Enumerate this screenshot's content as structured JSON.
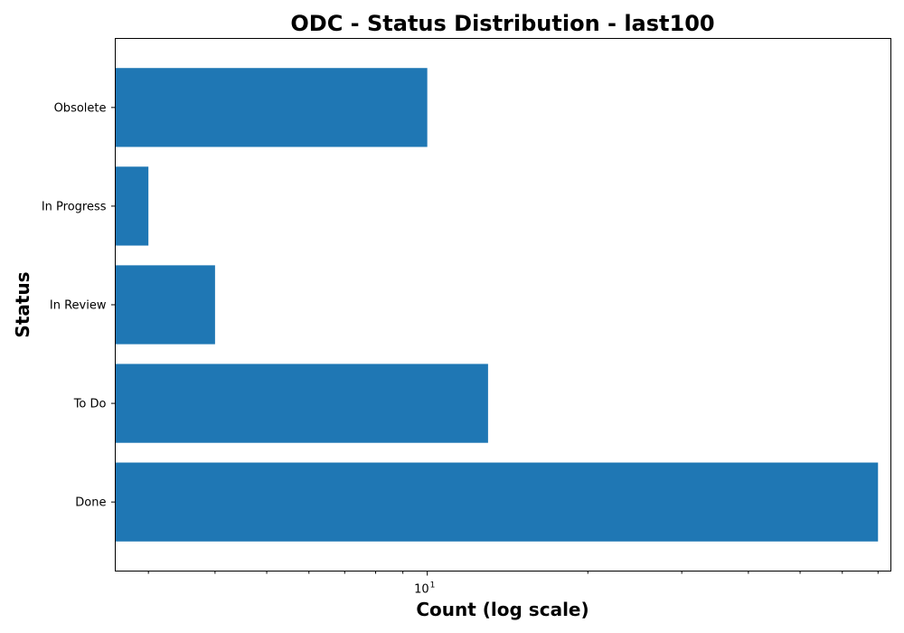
{
  "chart_data": {
    "type": "bar",
    "orientation": "horizontal",
    "title": "ODC - Status Distribution - last100",
    "xlabel": "Count (log scale)",
    "ylabel": "Status",
    "xscale": "log",
    "xlim": [
      2.6,
      74
    ],
    "x_major_tick": {
      "value": 10,
      "base": "10",
      "exponent": "1"
    },
    "x_minor_ticks": [
      3,
      4,
      5,
      6,
      7,
      8,
      9,
      20,
      30,
      40,
      50,
      60,
      70
    ],
    "categories": [
      "Done",
      "To Do",
      "In Review",
      "In Progress",
      "Obsolete"
    ],
    "values": [
      70,
      13,
      4,
      3,
      10
    ],
    "bar_color": "#1f77b4",
    "grid": false
  }
}
